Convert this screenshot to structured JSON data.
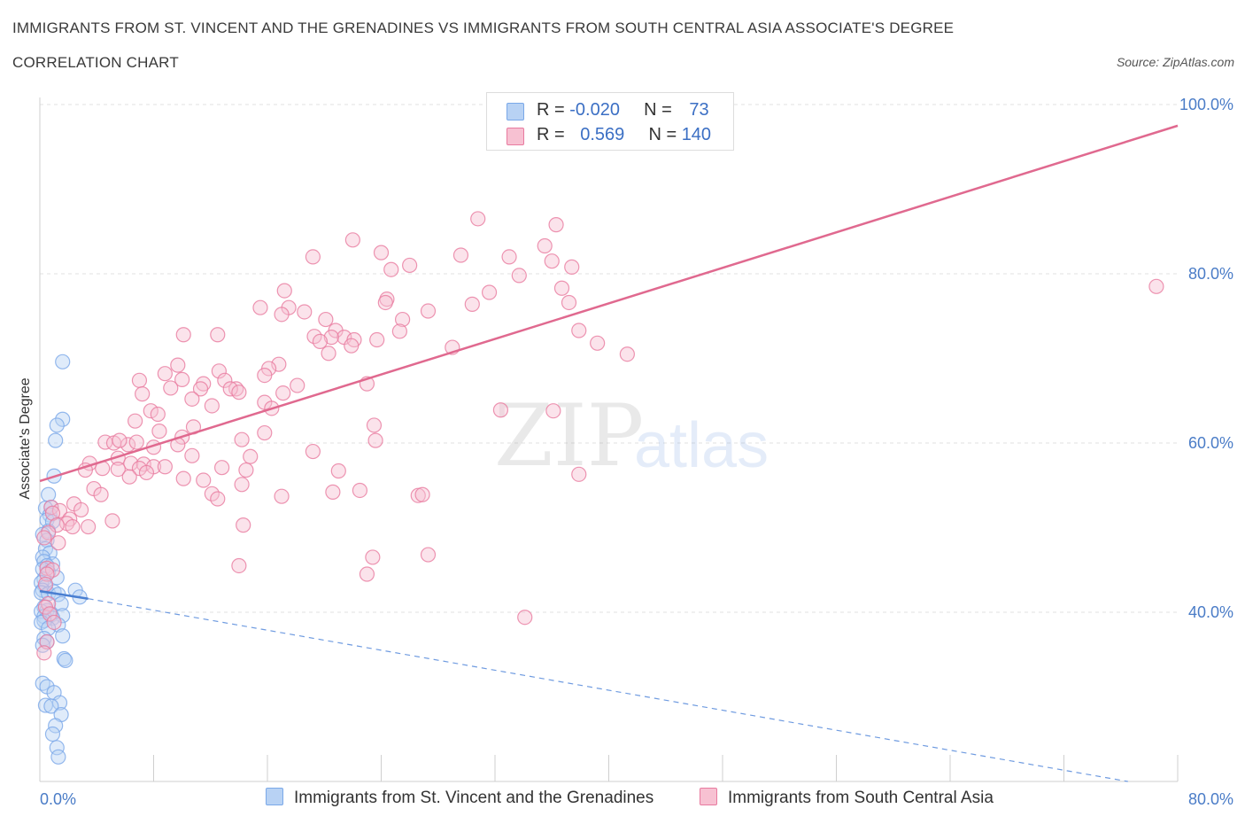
{
  "title_line1": "IMMIGRANTS FROM ST. VINCENT AND THE GRENADINES VS IMMIGRANTS FROM SOUTH CENTRAL ASIA ASSOCIATE'S DEGREE",
  "title_line2": "CORRELATION CHART",
  "source": "Source: ZipAtlas.com",
  "watermark": {
    "zip": "ZIP",
    "atlas": "atlas"
  },
  "legend": {
    "rows": [
      {
        "r_label": "R = ",
        "r_value": "-0.020",
        "n_label": "N = ",
        "n_value": "73",
        "color": "#a9c8f2"
      },
      {
        "r_label": "R = ",
        "r_value": "0.569",
        "n_label": "N = ",
        "n_value": "140",
        "color": "#f6b8cb"
      }
    ]
  },
  "chart_data": {
    "type": "scatter",
    "title": "IMMIGRANTS FROM ST. VINCENT AND THE GRENADINES VS IMMIGRANTS FROM SOUTH CENTRAL ASIA ASSOCIATE'S DEGREE CORRELATION CHART",
    "xlabel": "",
    "ylabel": "Associate's Degree",
    "xlim": [
      0,
      80
    ],
    "ylim": [
      20,
      100
    ],
    "x_ticks": [
      "0.0%",
      "80.0%"
    ],
    "y_ticks": [
      "40.0%",
      "60.0%",
      "80.0%",
      "100.0%"
    ],
    "y_tick_values": [
      40,
      60,
      80,
      100
    ],
    "grid": true,
    "legend_placement": "bottom",
    "series": [
      {
        "name": "Immigrants from St. Vincent and the Grenadines",
        "color": "#7aa8e8",
        "fill": "#b8d2f4",
        "R": -0.02,
        "N": 73,
        "trend": {
          "x": [
            0,
            3.4
          ],
          "y": [
            42.5,
            41.6
          ]
        },
        "trend_extended": {
          "x": [
            3.4,
            76.5
          ],
          "y": [
            41.6,
            20
          ]
        },
        "points": [
          [
            1.6,
            69.6
          ],
          [
            1.6,
            62.8
          ],
          [
            1.2,
            62.1
          ],
          [
            1.1,
            60.3
          ],
          [
            1.0,
            56.1
          ],
          [
            0.6,
            53.9
          ],
          [
            0.8,
            52.4
          ],
          [
            0.4,
            52.3
          ],
          [
            0.7,
            51.5
          ],
          [
            0.5,
            50.9
          ],
          [
            0.9,
            50.7
          ],
          [
            0.6,
            49.6
          ],
          [
            0.2,
            49.2
          ],
          [
            0.5,
            48.5
          ],
          [
            0.4,
            47.5
          ],
          [
            0.7,
            47.0
          ],
          [
            0.2,
            46.5
          ],
          [
            0.3,
            46.0
          ],
          [
            0.9,
            45.7
          ],
          [
            0.5,
            45.5
          ],
          [
            0.2,
            45.1
          ],
          [
            0.6,
            44.7
          ],
          [
            1.2,
            44.1
          ],
          [
            0.3,
            43.9
          ],
          [
            0.1,
            43.5
          ],
          [
            0.4,
            43.0
          ],
          [
            0.2,
            42.6
          ],
          [
            0.1,
            42.3
          ],
          [
            0.6,
            42.2
          ],
          [
            1.0,
            42.4
          ],
          [
            1.3,
            42.1
          ],
          [
            2.5,
            42.6
          ],
          [
            2.8,
            41.8
          ],
          [
            1.5,
            41.0
          ],
          [
            0.3,
            40.6
          ],
          [
            0.5,
            40.2
          ],
          [
            0.1,
            40.1
          ],
          [
            0.8,
            39.7
          ],
          [
            0.3,
            39.5
          ],
          [
            1.6,
            39.6
          ],
          [
            0.9,
            39.3
          ],
          [
            0.3,
            39.0
          ],
          [
            0.1,
            38.8
          ],
          [
            1.3,
            38.5
          ],
          [
            0.6,
            38.1
          ],
          [
            1.6,
            37.2
          ],
          [
            0.3,
            36.9
          ],
          [
            0.5,
            36.5
          ],
          [
            0.2,
            36.1
          ],
          [
            1.7,
            34.5
          ],
          [
            1.8,
            34.3
          ],
          [
            0.2,
            31.6
          ],
          [
            0.5,
            31.2
          ],
          [
            1.0,
            30.5
          ],
          [
            1.4,
            29.3
          ],
          [
            0.4,
            29.0
          ],
          [
            0.8,
            28.9
          ],
          [
            1.5,
            27.9
          ],
          [
            1.1,
            26.6
          ],
          [
            0.9,
            25.6
          ],
          [
            1.2,
            24.0
          ],
          [
            1.3,
            22.9
          ]
        ]
      },
      {
        "name": "Immigrants from South Central Asia",
        "color": "#e87a9f",
        "fill": "#f7c1d2",
        "R": 0.569,
        "N": 140,
        "trend": {
          "x": [
            0,
            80
          ],
          "y": [
            55.5,
            97.5
          ]
        },
        "points": [
          [
            30.8,
            86.5
          ],
          [
            36.3,
            85.8
          ],
          [
            35.5,
            83.3
          ],
          [
            22.0,
            84.0
          ],
          [
            24.0,
            82.5
          ],
          [
            19.2,
            82.0
          ],
          [
            29.6,
            82.2
          ],
          [
            33.0,
            82.0
          ],
          [
            36.0,
            81.5
          ],
          [
            26.0,
            81.0
          ],
          [
            24.7,
            80.5
          ],
          [
            37.4,
            80.8
          ],
          [
            33.7,
            79.8
          ],
          [
            78.5,
            78.5
          ],
          [
            17.2,
            78.0
          ],
          [
            36.7,
            78.3
          ],
          [
            31.6,
            77.8
          ],
          [
            24.4,
            77.0
          ],
          [
            24.3,
            76.6
          ],
          [
            30.4,
            76.4
          ],
          [
            37.2,
            76.6
          ],
          [
            17.5,
            76.0
          ],
          [
            15.5,
            76.0
          ],
          [
            18.6,
            75.5
          ],
          [
            27.3,
            75.6
          ],
          [
            17.0,
            75.2
          ],
          [
            20.1,
            74.6
          ],
          [
            25.5,
            74.6
          ],
          [
            20.8,
            73.3
          ],
          [
            37.9,
            73.3
          ],
          [
            25.3,
            73.2
          ],
          [
            10.1,
            72.8
          ],
          [
            12.5,
            72.8
          ],
          [
            19.3,
            72.6
          ],
          [
            21.4,
            72.5
          ],
          [
            20.5,
            72.5
          ],
          [
            22.1,
            72.2
          ],
          [
            23.7,
            72.2
          ],
          [
            19.7,
            72.0
          ],
          [
            21.9,
            71.5
          ],
          [
            29.0,
            71.3
          ],
          [
            39.2,
            71.8
          ],
          [
            20.3,
            70.6
          ],
          [
            41.3,
            70.5
          ],
          [
            16.8,
            69.3
          ],
          [
            16.1,
            68.8
          ],
          [
            9.7,
            69.2
          ],
          [
            12.6,
            68.5
          ],
          [
            8.8,
            68.2
          ],
          [
            15.8,
            68.0
          ],
          [
            7.0,
            67.4
          ],
          [
            10.0,
            67.5
          ],
          [
            13.0,
            67.4
          ],
          [
            11.5,
            67.0
          ],
          [
            23.0,
            67.0
          ],
          [
            18.1,
            66.8
          ],
          [
            9.2,
            66.5
          ],
          [
            11.3,
            66.4
          ],
          [
            13.8,
            66.4
          ],
          [
            13.4,
            66.4
          ],
          [
            14.0,
            66.0
          ],
          [
            7.2,
            65.8
          ],
          [
            17.1,
            65.9
          ],
          [
            10.7,
            65.2
          ],
          [
            15.8,
            64.8
          ],
          [
            16.3,
            64.1
          ],
          [
            12.1,
            64.4
          ],
          [
            7.8,
            63.8
          ],
          [
            8.3,
            63.4
          ],
          [
            32.4,
            63.9
          ],
          [
            36.1,
            63.8
          ],
          [
            6.7,
            62.6
          ],
          [
            23.5,
            62.1
          ],
          [
            10.8,
            61.9
          ],
          [
            15.8,
            61.2
          ],
          [
            8.4,
            61.4
          ],
          [
            10.0,
            60.7
          ],
          [
            14.2,
            60.4
          ],
          [
            23.6,
            60.3
          ],
          [
            4.6,
            60.1
          ],
          [
            6.2,
            59.8
          ],
          [
            5.2,
            60.0
          ],
          [
            6.8,
            60.1
          ],
          [
            5.6,
            60.3
          ],
          [
            9.7,
            59.8
          ],
          [
            8.0,
            59.5
          ],
          [
            19.2,
            59.0
          ],
          [
            14.8,
            58.4
          ],
          [
            10.7,
            58.5
          ],
          [
            5.5,
            58.2
          ],
          [
            6.4,
            57.6
          ],
          [
            3.5,
            57.6
          ],
          [
            7.3,
            57.5
          ],
          [
            8.0,
            57.2
          ],
          [
            4.4,
            57.0
          ],
          [
            5.5,
            56.9
          ],
          [
            3.2,
            56.8
          ],
          [
            8.8,
            57.2
          ],
          [
            7.0,
            57.0
          ],
          [
            12.8,
            57.1
          ],
          [
            7.5,
            56.5
          ],
          [
            14.5,
            56.8
          ],
          [
            21.0,
            56.7
          ],
          [
            10.1,
            55.8
          ],
          [
            6.3,
            56.0
          ],
          [
            37.9,
            56.3
          ],
          [
            11.5,
            55.6
          ],
          [
            14.2,
            55.1
          ],
          [
            3.8,
            54.6
          ],
          [
            22.5,
            54.4
          ],
          [
            20.6,
            54.2
          ],
          [
            12.1,
            54.0
          ],
          [
            4.3,
            53.9
          ],
          [
            17.0,
            53.7
          ],
          [
            26.6,
            53.8
          ],
          [
            26.9,
            53.9
          ],
          [
            12.5,
            53.4
          ],
          [
            2.4,
            52.8
          ],
          [
            0.8,
            52.4
          ],
          [
            2.9,
            52.1
          ],
          [
            1.4,
            52.0
          ],
          [
            0.9,
            51.7
          ],
          [
            2.1,
            51.0
          ],
          [
            5.1,
            50.8
          ],
          [
            1.9,
            50.5
          ],
          [
            3.4,
            50.1
          ],
          [
            1.2,
            50.3
          ],
          [
            2.3,
            50.1
          ],
          [
            14.3,
            50.3
          ],
          [
            0.6,
            49.4
          ],
          [
            0.3,
            48.8
          ],
          [
            1.3,
            48.2
          ],
          [
            23.4,
            46.5
          ],
          [
            27.3,
            46.8
          ],
          [
            14.0,
            45.5
          ],
          [
            0.5,
            45.2
          ],
          [
            0.9,
            45.0
          ],
          [
            0.5,
            44.5
          ],
          [
            23.0,
            44.5
          ],
          [
            0.4,
            43.3
          ],
          [
            34.1,
            39.4
          ],
          [
            0.6,
            41.0
          ],
          [
            0.4,
            40.6
          ],
          [
            0.7,
            39.8
          ],
          [
            1.0,
            38.8
          ],
          [
            0.5,
            36.5
          ],
          [
            0.3,
            35.2
          ]
        ]
      }
    ]
  }
}
